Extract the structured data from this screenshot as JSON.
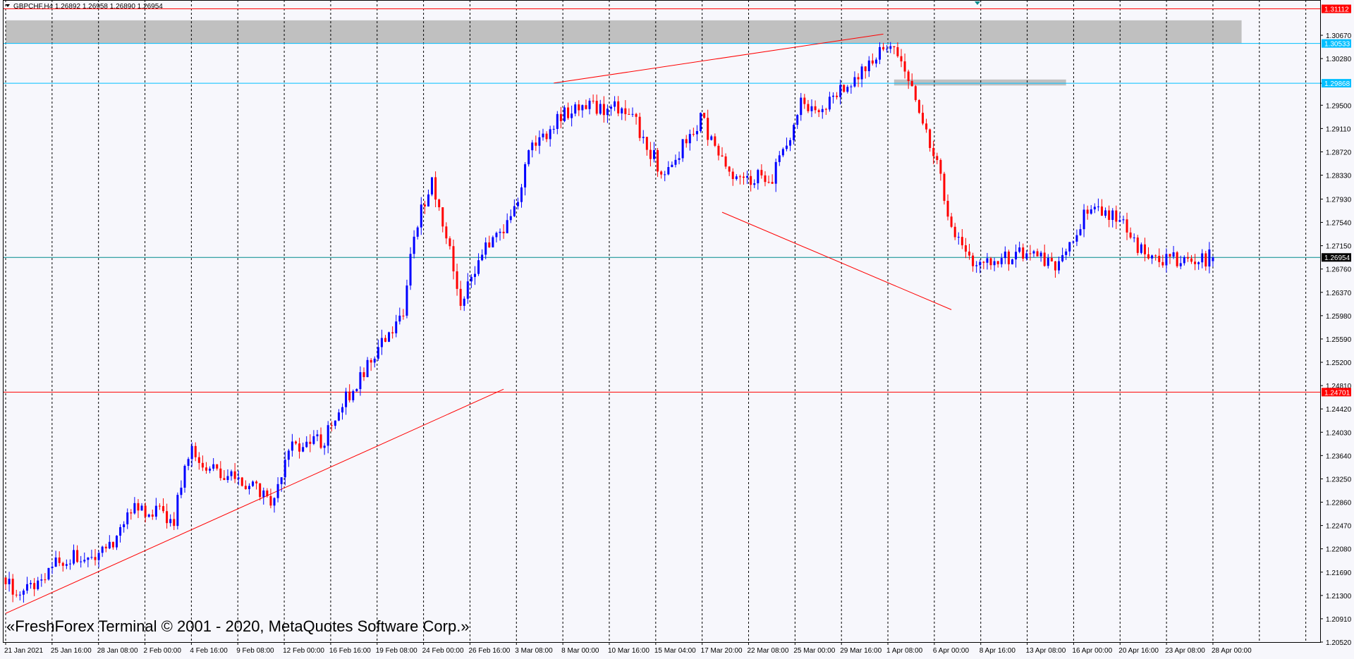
{
  "header": {
    "symbol_line": "GBPCHF,H4  1.26892 1.26958 1.26890 1.26954"
  },
  "watermark": "«FreshForex Terminal © 2001 - 2020, MetaQuotes Software Corp.»",
  "colors": {
    "background": "#f7f7fc",
    "bull_candle": "#0000ff",
    "bear_candle": "#ff0000",
    "grid": "#000000",
    "resistance_line": "#ff0000",
    "level_line": "#00bfff",
    "current_price_line": "#008b8b",
    "zone_fill": "#c0c0c0"
  },
  "chart_data": {
    "type": "candlestick",
    "symbol": "GBPCHF",
    "timeframe": "H4",
    "ohlc_current": {
      "open": 1.26892,
      "high": 1.26958,
      "low": 1.2689,
      "close": 1.26954
    },
    "ylim": [
      1.2052,
      1.3126
    ],
    "y_ticks": [
      "1.30670",
      "1.30280",
      "1.29868",
      "1.29500",
      "1.29110",
      "1.28720",
      "1.28330",
      "1.27930",
      "1.27540",
      "1.27150",
      "1.26760",
      "1.26370",
      "1.25980",
      "1.25590",
      "1.25200",
      "1.24810",
      "1.24420",
      "1.24030",
      "1.23640",
      "1.23250",
      "1.22860",
      "1.22470",
      "1.22080",
      "1.21690",
      "1.21300",
      "1.20910",
      "1.20520"
    ],
    "x_ticks": [
      "21 Jan 2021",
      "25 Jan 16:00",
      "28 Jan 08:00",
      "2 Feb 00:00",
      "4 Feb 16:00",
      "9 Feb 08:00",
      "12 Feb 00:00",
      "16 Feb 16:00",
      "19 Feb 08:00",
      "24 Feb 00:00",
      "26 Feb 16:00",
      "3 Mar 08:00",
      "8 Mar 00:00",
      "10 Mar 16:00",
      "15 Mar 04:00",
      "17 Mar 20:00",
      "22 Mar 08:00",
      "25 Mar 00:00",
      "29 Mar 16:00",
      "1 Apr 08:00",
      "6 Apr 00:00",
      "8 Apr 16:00",
      "13 Apr 08:00",
      "16 Apr 00:00",
      "20 Apr 16:00",
      "23 Apr 08:00",
      "28 Apr 00:00"
    ],
    "horizontal_levels": [
      {
        "price": 1.31112,
        "label": "1.31112",
        "color": "#ff0000"
      },
      {
        "price": 1.30533,
        "label": "1.30533",
        "color": "#00bfff"
      },
      {
        "price": 1.29868,
        "label": "1.29868",
        "color": "#00bfff"
      },
      {
        "price": 1.26954,
        "label": "1.26954",
        "color": "#008b8b",
        "current": true
      },
      {
        "price": 1.24701,
        "label": "1.24701",
        "color": "#ff0000"
      }
    ],
    "zones": [
      {
        "from_bar": 0,
        "to_bar": 345,
        "price_top": 1.3092,
        "price_bottom": 1.3053
      },
      {
        "from_bar": 248,
        "to_bar": 296,
        "price_top": 1.2993,
        "price_bottom": 1.2983
      }
    ],
    "trendlines": [
      {
        "bar1": 0,
        "price1": 1.21,
        "bar2": 139,
        "price2": 1.2475
      },
      {
        "bar1": 153,
        "price1": 1.2987,
        "bar2": 245,
        "price2": 1.3069
      },
      {
        "bar1": 200,
        "price1": 1.2771,
        "bar2": 264,
        "price2": 1.2608
      }
    ],
    "anchors": [
      [
        0,
        1.216
      ],
      [
        6,
        1.213
      ],
      [
        16,
        1.2185
      ],
      [
        30,
        1.221
      ],
      [
        36,
        1.228
      ],
      [
        48,
        1.226
      ],
      [
        52,
        1.237
      ],
      [
        62,
        1.233
      ],
      [
        76,
        1.229
      ],
      [
        80,
        1.238
      ],
      [
        90,
        1.239
      ],
      [
        98,
        1.248
      ],
      [
        104,
        1.253
      ],
      [
        112,
        1.261
      ],
      [
        115,
        1.274
      ],
      [
        120,
        1.282
      ],
      [
        125,
        1.271
      ],
      [
        128,
        1.262
      ],
      [
        134,
        1.27
      ],
      [
        144,
        1.278
      ],
      [
        147,
        1.288
      ],
      [
        153,
        1.291
      ],
      [
        160,
        1.295
      ],
      [
        175,
        1.294
      ],
      [
        185,
        1.283
      ],
      [
        195,
        1.293
      ],
      [
        203,
        1.283
      ],
      [
        215,
        1.283
      ],
      [
        223,
        1.295
      ],
      [
        229,
        1.294
      ],
      [
        236,
        1.299
      ],
      [
        244,
        1.303
      ],
      [
        248,
        1.306
      ],
      [
        252,
        1.302
      ],
      [
        260,
        1.287
      ],
      [
        265,
        1.275
      ],
      [
        272,
        1.268
      ],
      [
        285,
        1.27
      ],
      [
        295,
        1.268
      ],
      [
        303,
        1.278
      ],
      [
        312,
        1.276
      ],
      [
        320,
        1.269
      ],
      [
        332,
        1.269
      ],
      [
        337,
        1.2695
      ]
    ],
    "bar_count": 338
  }
}
